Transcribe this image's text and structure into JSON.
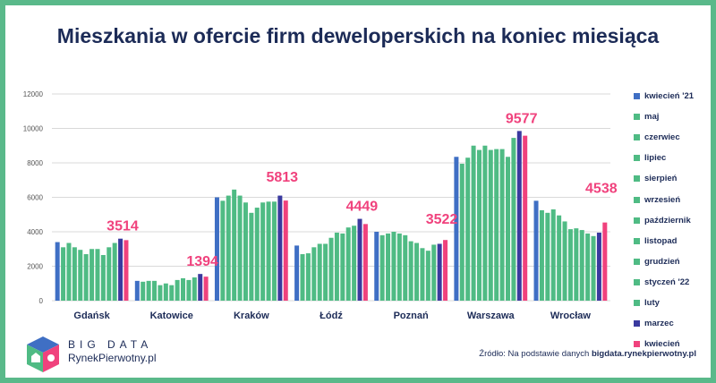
{
  "title": "Mieszkania w ofercie firm deweloperskich na koniec miesiąca",
  "source": {
    "prefix": "Źródło: Na podstawie danych",
    "highlight": "bigdata.rynekpierwotny.pl"
  },
  "logo": {
    "top": "BIG DATA",
    "bottom": "RynekPierwotny.pl"
  },
  "colors": {
    "blue": "#3f6fc4",
    "green": "#4fbb84",
    "navy": "#3a3a9f",
    "pink": "#f0427d",
    "text": "#1c2b57",
    "grid": "#d9d9d9"
  },
  "chart_data": {
    "type": "bar",
    "title": "Mieszkania w ofercie firm deweloperskich na koniec miesiąca",
    "categories": [
      "Gdańsk",
      "Katowice",
      "Kraków",
      "Łódź",
      "Poznań",
      "Warszawa",
      "Wrocław"
    ],
    "ylim": [
      0,
      12000
    ],
    "yticks": [
      0,
      2000,
      4000,
      6000,
      8000,
      10000,
      12000
    ],
    "grid": true,
    "legend_position": "right",
    "series": [
      {
        "name": "kwiecień '21",
        "color": "#3f6fc4",
        "values": [
          3400,
          1150,
          6000,
          3200,
          4000,
          8350,
          5800
        ]
      },
      {
        "name": "maj",
        "color": "#4fbb84",
        "values": [
          3100,
          1100,
          5800,
          2700,
          3800,
          7950,
          5250
        ]
      },
      {
        "name": "czerwiec",
        "color": "#4fbb84",
        "values": [
          3350,
          1150,
          6100,
          2750,
          3900,
          8300,
          5100
        ]
      },
      {
        "name": "lipiec",
        "color": "#4fbb84",
        "values": [
          3100,
          1150,
          6450,
          3100,
          4000,
          9000,
          5300
        ]
      },
      {
        "name": "sierpień",
        "color": "#4fbb84",
        "values": [
          2950,
          900,
          6100,
          3300,
          3900,
          8750,
          4950
        ]
      },
      {
        "name": "wrzesień",
        "color": "#4fbb84",
        "values": [
          2700,
          1000,
          5700,
          3300,
          3800,
          9000,
          4600
        ]
      },
      {
        "name": "październik",
        "color": "#4fbb84",
        "values": [
          3000,
          900,
          5100,
          3650,
          3450,
          8750,
          4150
        ]
      },
      {
        "name": "listopad",
        "color": "#4fbb84",
        "values": [
          3000,
          1200,
          5400,
          3950,
          3350,
          8800,
          4200
        ]
      },
      {
        "name": "grudzień",
        "color": "#4fbb84",
        "values": [
          2650,
          1300,
          5700,
          3900,
          3050,
          8800,
          4100
        ]
      },
      {
        "name": "styczeń '22",
        "color": "#4fbb84",
        "values": [
          3100,
          1200,
          5750,
          4250,
          2900,
          8350,
          3900
        ]
      },
      {
        "name": "luty",
        "color": "#4fbb84",
        "values": [
          3350,
          1350,
          5750,
          4350,
          3250,
          9450,
          3750
        ]
      },
      {
        "name": "marzec",
        "color": "#3a3a9f",
        "values": [
          3600,
          1550,
          6100,
          4750,
          3300,
          9850,
          3950
        ]
      },
      {
        "name": "kwiecień",
        "color": "#f0427d",
        "values": [
          3514,
          1394,
          5813,
          4449,
          3522,
          9577,
          4538
        ]
      }
    ],
    "data_labels": [
      "3514",
      "1394",
      "5813",
      "4449",
      "3522",
      "9577",
      "4538"
    ]
  }
}
